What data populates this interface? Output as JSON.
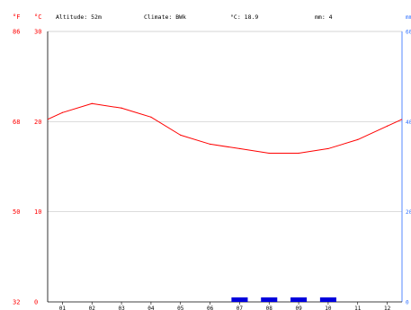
{
  "header": {
    "unit_f": "°F",
    "unit_c": "°C",
    "altitude": "Altitude: 52m",
    "climate": "Climate: BWk",
    "avg_temp": "°C: 18.9",
    "precip": "mm: 4",
    "precip_unit": "mm"
  },
  "colors": {
    "temperature": "#ff0000",
    "precipitation": "#0000dd",
    "grid": "#c8c8c8",
    "right_axis": "#2a6cff"
  },
  "chart_data": {
    "type": "line",
    "x_categories": [
      "01",
      "02",
      "03",
      "04",
      "05",
      "06",
      "07",
      "08",
      "09",
      "10",
      "11",
      "12"
    ],
    "series": [
      {
        "name": "",
        "unit": "°C",
        "values": [
          21.0,
          22.0,
          21.5,
          20.5,
          18.5,
          17.5,
          17.0,
          16.5,
          16.5,
          17.0,
          18.0,
          19.5
        ]
      },
      {
        "name": "",
        "type": "bar",
        "unit": "mm",
        "values": [
          0,
          0,
          0,
          0,
          0,
          0,
          1,
          1,
          1,
          1,
          0,
          0
        ]
      }
    ],
    "y_left_celsius": {
      "range": [
        0,
        30
      ],
      "ticks": [
        "0",
        "10",
        "20",
        "30"
      ]
    },
    "y_left_fahrenheit": {
      "ticks": [
        "32",
        "50",
        "68",
        "86"
      ]
    },
    "y_right_mm": {
      "range": [
        0,
        60
      ],
      "ticks": [
        "0",
        "20",
        "40",
        "60"
      ]
    },
    "grid": true
  }
}
